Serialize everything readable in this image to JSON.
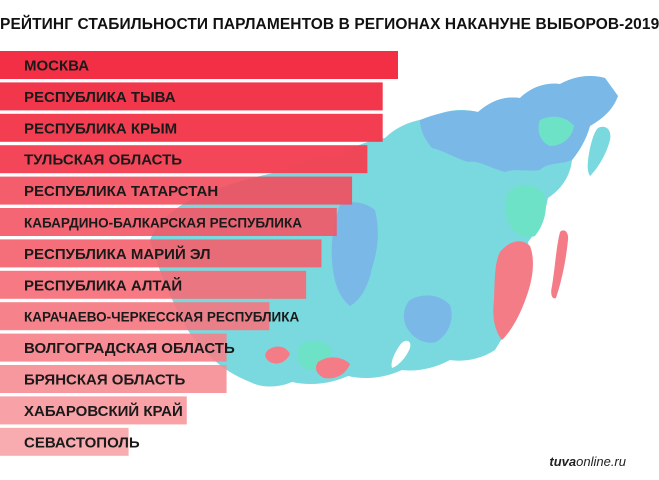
{
  "header": {
    "title": "РЕЙТИНГ СТАБИЛЬНОСТИ ПАРЛАМЕНТОВ В РЕГИОНАХ  НАКАНУНЕ ВЫБОРОВ-2019"
  },
  "footer": {
    "source_bold": "tuva",
    "source_rest": "online.ru"
  },
  "colors": {
    "bar_top": "#f2283f",
    "bar_bottom": "#f7a3a6",
    "map_land": "#6fd6dc",
    "map_blue": "#6fb2e6",
    "map_green": "#62e0c2",
    "map_pink": "#f3717d",
    "map_water": "#ffffff"
  },
  "chart_data": {
    "type": "bar",
    "orientation": "horizontal",
    "title": "РЕЙТИНГ СТАБИЛЬНОСТИ ПАРЛАМЕНТОВ В РЕГИОНАХ  НАКАНУНЕ ВЫБОРОВ-2019",
    "categories": [
      "МОСКВА",
      "РЕСПУБЛИКА ТЫВА",
      "РЕСПУБЛИКА КРЫМ",
      "ТУЛЬСКАЯ ОБЛАСТЬ",
      "РЕСПУБЛИКА ТАТАРСТАН",
      "КАБАРДИНО-БАЛКАРСКАЯ РЕСПУБЛИКА",
      "РЕСПУБЛИКА МАРИЙ ЭЛ",
      "РЕСПУБЛИКА АЛТАЙ",
      "КАРАЧАЕВО-ЧЕРКЕССКАЯ РЕСПУБЛИКА",
      "ВОЛГОГРАДСКАЯ ОБЛАСТЬ",
      "БРЯНСКАЯ ОБЛАСТЬ",
      "ХАБАРОВСКИЙ КРАЙ",
      "СЕВАСТОПОЛЬ"
    ],
    "values": [
      13,
      12.5,
      12.5,
      12,
      11.5,
      11,
      10.5,
      10,
      8.8,
      7.4,
      7.4,
      6.1,
      4.2
    ],
    "xlim": [
      0,
      13
    ],
    "grid": false,
    "legend": "none"
  }
}
